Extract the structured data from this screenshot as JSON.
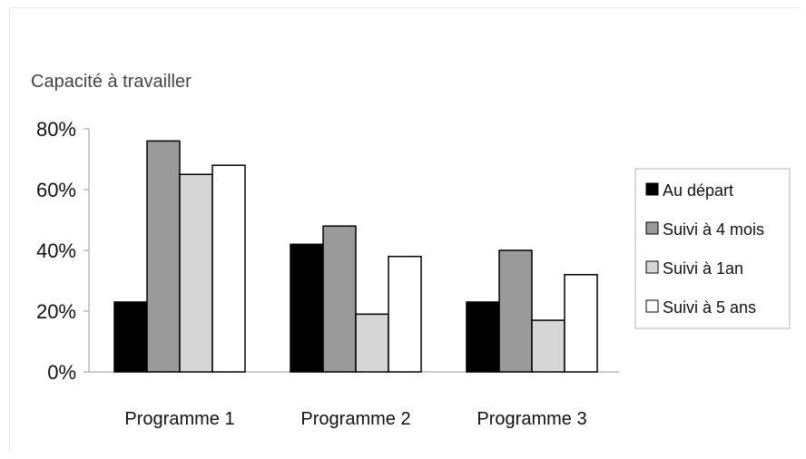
{
  "chart_data": {
    "type": "bar",
    "ylabel": "Capacité à travailler",
    "categories": [
      "Programme 1",
      "Programme 2",
      "Programme 3"
    ],
    "series": [
      {
        "name": "Au départ",
        "values": [
          23,
          42,
          23
        ]
      },
      {
        "name": "Suivi à 4 mois",
        "values": [
          76,
          48,
          40
        ]
      },
      {
        "name": "Suivi à 1an",
        "values": [
          65,
          19,
          17
        ]
      },
      {
        "name": "Suivi à 5 ans",
        "values": [
          68,
          38,
          32
        ]
      }
    ],
    "ylim": [
      0,
      80
    ],
    "yticks": [
      "0%",
      "20%",
      "40%",
      "60%",
      "80%"
    ],
    "ytick_values": [
      0,
      20,
      40,
      60,
      80
    ],
    "grid": false,
    "legend_position": "right",
    "colors": [
      "#000000",
      "#9a9a9a",
      "#d6d6d6",
      "#ffffff"
    ]
  }
}
